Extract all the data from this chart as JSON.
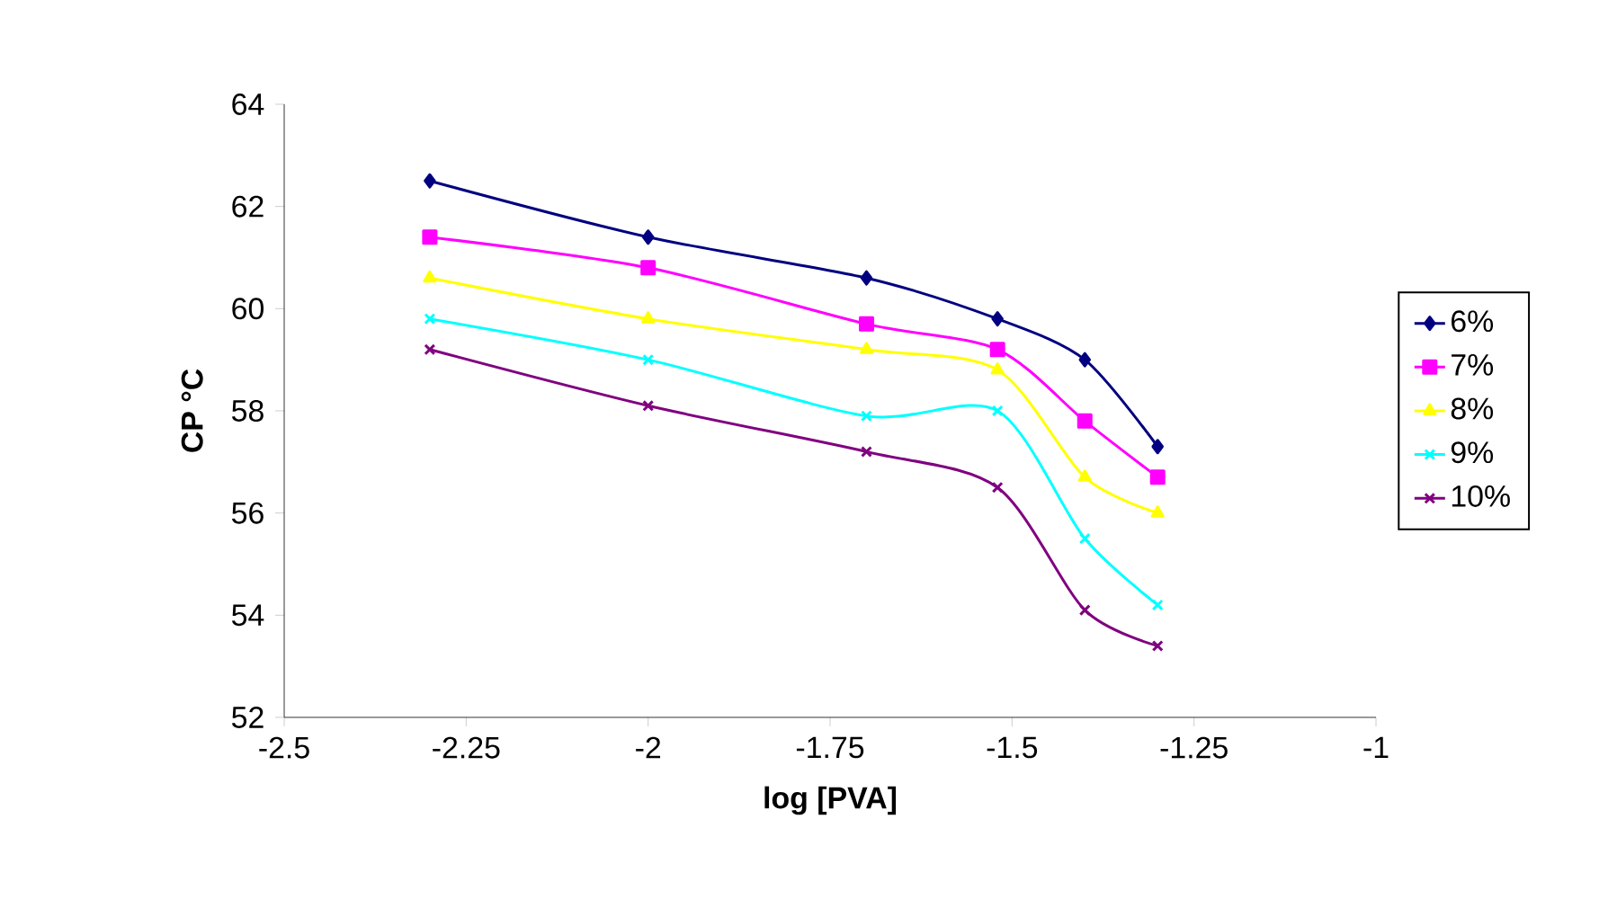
{
  "chart_data": {
    "type": "line",
    "xlabel": "log [PVA]",
    "ylabel": "CP °C",
    "xlim": [
      -2.5,
      -1
    ],
    "xticks": [
      -2.5,
      -2.25,
      -2,
      -1.75,
      -1.5,
      -1.25,
      -1
    ],
    "ylim": [
      52,
      64
    ],
    "yticks": [
      52,
      54,
      56,
      58,
      60,
      62,
      64
    ],
    "grid": false,
    "legend": "right",
    "series": [
      {
        "name": "6%",
        "color": "#000080",
        "marker": "diamond",
        "x": [
          -2.3,
          -2.0,
          -1.7,
          -1.52,
          -1.4,
          -1.3
        ],
        "values": [
          62.5,
          61.4,
          60.6,
          59.8,
          59.0,
          57.3
        ]
      },
      {
        "name": "7%",
        "color": "#ff00ff",
        "marker": "square",
        "x": [
          -2.3,
          -2.0,
          -1.7,
          -1.52,
          -1.4,
          -1.3
        ],
        "values": [
          61.4,
          60.8,
          59.7,
          59.2,
          57.8,
          56.7
        ]
      },
      {
        "name": "8%",
        "color": "#ffff00",
        "marker": "triangle",
        "x": [
          -2.3,
          -2.0,
          -1.7,
          -1.52,
          -1.4,
          -1.3
        ],
        "values": [
          60.6,
          59.8,
          59.2,
          58.8,
          56.7,
          56.0
        ]
      },
      {
        "name": "9%",
        "color": "#00ffff",
        "marker": "cross",
        "x": [
          -2.3,
          -2.0,
          -1.7,
          -1.52,
          -1.4,
          -1.3
        ],
        "values": [
          59.8,
          59.0,
          57.9,
          58.0,
          55.5,
          54.2
        ]
      },
      {
        "name": "10%",
        "color": "#800080",
        "marker": "cross",
        "x": [
          -2.3,
          -2.0,
          -1.7,
          -1.52,
          -1.4,
          -1.3
        ],
        "values": [
          59.2,
          58.1,
          57.2,
          56.5,
          54.1,
          53.4
        ]
      }
    ]
  }
}
